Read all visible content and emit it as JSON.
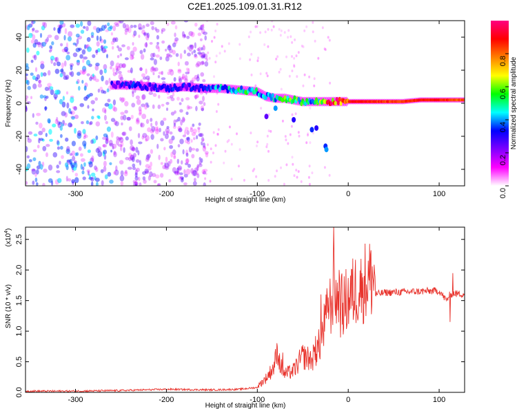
{
  "title": "C2E1.2025.109.01.31.R12",
  "chart_data": [
    {
      "type": "heatmap",
      "xlabel": "Height of straight line (km)",
      "ylabel": "Frequency (Hz)",
      "xlim": [
        -355,
        128
      ],
      "ylim": [
        -50,
        50
      ],
      "xticks": [
        -300,
        -200,
        -100,
        0,
        100
      ],
      "yticks": [
        -40,
        -20,
        0,
        20,
        40
      ],
      "colorbar": {
        "label": "Normalized spectral amplitude",
        "range": [
          0,
          1
        ],
        "ticks": [
          "0.0",
          "0.2",
          "0.4",
          "0.6",
          "0.8"
        ],
        "colormap": [
          "#ffffff",
          "#ff00ff",
          "#7f00ff",
          "#0000ff",
          "#00ffff",
          "#00ff00",
          "#ffff00",
          "#ff8000",
          "#ff0000",
          "#ff0080"
        ]
      },
      "ridge": {
        "x": [
          -260,
          -240,
          -220,
          -200,
          -180,
          -160,
          -140,
          -120,
          -100,
          -90,
          -80,
          -70,
          -60,
          -50,
          -40,
          -30,
          -20,
          -10,
          0,
          20,
          40,
          60,
          80,
          100,
          128
        ],
        "freq": [
          11,
          11,
          10,
          9,
          10,
          9,
          9,
          8,
          7,
          4,
          3,
          3,
          2,
          1,
          1,
          1,
          1,
          1,
          1,
          1,
          1,
          1,
          2,
          2,
          2
        ],
        "amplitude": [
          0.3,
          0.32,
          0.3,
          0.32,
          0.3,
          0.3,
          0.42,
          0.5,
          0.46,
          0.4,
          0.45,
          0.52,
          0.55,
          0.5,
          0.45,
          0.6,
          0.85,
          0.88,
          0.9,
          0.9,
          0.85,
          0.85,
          0.9,
          0.88,
          0.82
        ]
      }
    },
    {
      "type": "line",
      "xlabel": "Height of straight line (km)",
      "ylabel": "SNR (10 * v/v)",
      "yscale_label": "(x10",
      "yscale_exp": "4",
      "xlim": [
        -355,
        128
      ],
      "ylim": [
        0,
        2.7
      ],
      "xticks": [
        -300,
        -200,
        -100,
        0,
        100
      ],
      "yticks": [
        "0.0",
        "0.5",
        "1.0",
        "1.5",
        "2.0",
        "2.5"
      ],
      "series": [
        {
          "color": "#e8312a",
          "x": [
            -355,
            -300,
            -250,
            -200,
            -150,
            -120,
            -100,
            -90,
            -82,
            -78,
            -74,
            -70,
            -60,
            -50,
            -40,
            -30,
            -25,
            -20,
            -15,
            -10,
            -5,
            0,
            10,
            20,
            30,
            40,
            60,
            80,
            100,
            108,
            112,
            115,
            120,
            128
          ],
          "y": [
            0.02,
            0.02,
            0.03,
            0.05,
            0.04,
            0.05,
            0.08,
            0.2,
            0.35,
            0.55,
            0.35,
            0.25,
            0.3,
            0.5,
            0.45,
            0.7,
            1.0,
            1.2,
            1.4,
            1.2,
            1.2,
            1.3,
            1.45,
            1.55,
            1.6,
            1.63,
            1.64,
            1.65,
            1.66,
            1.5,
            1.6,
            1.62,
            1.61,
            1.61
          ],
          "spikes": [
            {
              "x": -78,
              "y": 0.75
            },
            {
              "x": -72,
              "y": 0.65
            },
            {
              "x": -48,
              "y": 0.75
            },
            {
              "x": -36,
              "y": 0.92
            },
            {
              "x": -30,
              "y": 1.6
            },
            {
              "x": -22,
              "y": 1.55
            },
            {
              "x": -16,
              "y": 2.72
            },
            {
              "x": -10,
              "y": 2.0
            },
            {
              "x": 15,
              "y": 1.95
            },
            {
              "x": 112,
              "y": 1.15
            },
            {
              "x": 115,
              "y": 1.95
            }
          ]
        }
      ]
    }
  ]
}
